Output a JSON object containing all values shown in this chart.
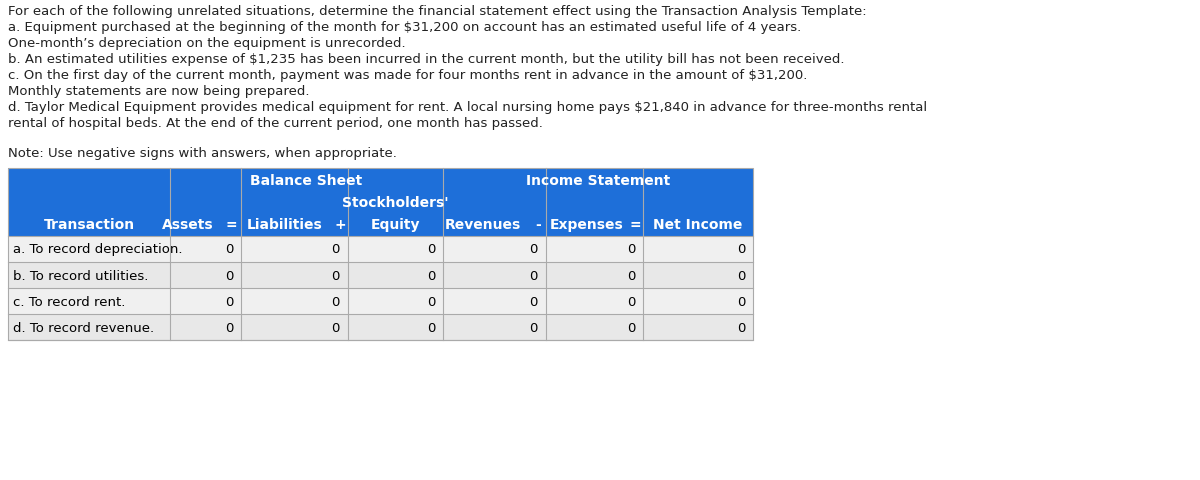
{
  "description_lines": [
    "For each of the following unrelated situations, determine the financial statement effect using the Transaction Analysis Template:",
    "a. Equipment purchased at the beginning of the month for $31,200 on account has an estimated useful life of 4 years.",
    "One-month’s depreciation on the equipment is unrecorded.",
    "b. An estimated utilities expense of $1,235 has been incurred in the current month, but the utility bill has not been received.",
    "c. On the first day of the current month, payment was made for four months rent in advance in the amount of $31,200.",
    "Monthly statements are now being prepared.",
    "d. Taylor Medical Equipment provides medical equipment for rent. A local nursing home pays $21,840 in advance for three-months rental",
    "rental of hospital beds. At the end of the current period, one month has passed."
  ],
  "note_line": "Note: Use negative signs with answers, when appropriate.",
  "header_row1_bs": "Balance Sheet",
  "header_row1_is": "Income Statement",
  "header_row2_sh": "Stockholders'",
  "rows": [
    [
      "a. To record depreciation.",
      "0",
      "0",
      "0",
      "0",
      "0",
      "0"
    ],
    [
      "b. To record utilities.",
      "0",
      "0",
      "0",
      "0",
      "0",
      "0"
    ],
    [
      "c. To record rent.",
      "0",
      "0",
      "0",
      "0",
      "0",
      "0"
    ],
    [
      "d. To record revenue.",
      "0",
      "0",
      "0",
      "0",
      "0",
      "0"
    ]
  ],
  "header_bg_color": "#1E6FD9",
  "header_text_color": "#FFFFFF",
  "row_bg_even": "#F0F0F0",
  "row_bg_odd": "#E8E8E8",
  "description_font_size": 9.5,
  "table_font_size": 9.5,
  "fig_width": 12.0,
  "fig_height": 4.81
}
